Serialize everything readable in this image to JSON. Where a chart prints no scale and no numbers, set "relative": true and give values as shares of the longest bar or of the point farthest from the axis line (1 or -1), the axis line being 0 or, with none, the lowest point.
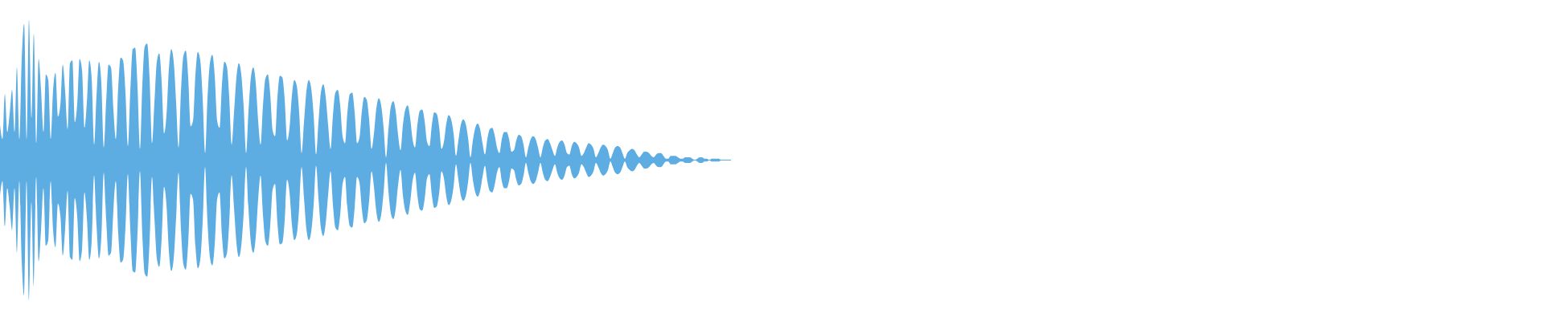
{
  "chart_data": {
    "type": "area",
    "relative": true,
    "categories": [
      null,
      null,
      null,
      null,
      null,
      null,
      null,
      null,
      null,
      null,
      null,
      null,
      null,
      null,
      null,
      null,
      null,
      null,
      null,
      null,
      null,
      null,
      null,
      null,
      null,
      null,
      null,
      null,
      null,
      null,
      null,
      null,
      null,
      null,
      null,
      null,
      null,
      null,
      null,
      null,
      null,
      null,
      null,
      null,
      null,
      null,
      null,
      null,
      null,
      null,
      null,
      null,
      null,
      null,
      null,
      null,
      null,
      null,
      null,
      null,
      null,
      null,
      null,
      null,
      null,
      null,
      null,
      null,
      null,
      null,
      null,
      null,
      null,
      null,
      null,
      null,
      null,
      null,
      null,
      null,
      null,
      null,
      null,
      null,
      null,
      null,
      null,
      null,
      null,
      null,
      null,
      null,
      null,
      null,
      null,
      null,
      null,
      null,
      null,
      null,
      null,
      null,
      null,
      null,
      null,
      null,
      null,
      null,
      null,
      null,
      null,
      null,
      null,
      null,
      null,
      null,
      null,
      null,
      null,
      null,
      null,
      null,
      null,
      null,
      null,
      null,
      null,
      null,
      null,
      null,
      null,
      null,
      null,
      null,
      null,
      null,
      null,
      null,
      null,
      null,
      null,
      null,
      null,
      null,
      null,
      null,
      null,
      null,
      null,
      null,
      null,
      null,
      null,
      null,
      null,
      null,
      null,
      null,
      null,
      null,
      null,
      null,
      null,
      null,
      null,
      null,
      null,
      null,
      null,
      null,
      null,
      null,
      null,
      null,
      null,
      null,
      null,
      null,
      null,
      null,
      null,
      null,
      null,
      null,
      null,
      null,
      null,
      null,
      null,
      null,
      null,
      null,
      null,
      null,
      null,
      null,
      null,
      null,
      null,
      null,
      null,
      null,
      null,
      null,
      null,
      null,
      null,
      null,
      null,
      null,
      null,
      null,
      null,
      null,
      null,
      null,
      null,
      null,
      null,
      null,
      null,
      null,
      null,
      null,
      null,
      null,
      null,
      null,
      null,
      null,
      null,
      null,
      null,
      null,
      null,
      null,
      null,
      null,
      null,
      null,
      null,
      null,
      null,
      null,
      null,
      null,
      null,
      null,
      null,
      null,
      null,
      null,
      null,
      null,
      null,
      null,
      null,
      null,
      null,
      null,
      null,
      null,
      null,
      null,
      null,
      null,
      null,
      null,
      null,
      null,
      null,
      null,
      null,
      null,
      null,
      null,
      null,
      null,
      null,
      null,
      null,
      null,
      null,
      null,
      null,
      null,
      null,
      null,
      null,
      null,
      null,
      null,
      null,
      null,
      null,
      null,
      null,
      null,
      null,
      null,
      null,
      null,
      null,
      null
    ],
    "ref_lines": [
      {
        "axis": "y",
        "value": 0,
        "color": "#5dade2"
      }
    ],
    "series": [
      {
        "color": "#5dade2",
        "values": [
          0.25,
          0.15,
          0.47,
          0.2,
          0.33,
          0.5,
          0.2,
          0.66,
          0.15,
          0.72,
          0.97,
          0.15,
          1,
          0.3,
          0.9,
          0.12,
          0.72,
          0.5,
          0.2,
          0.61,
          0.57,
          0.15,
          0.5,
          0.62,
          0.31,
          0.39,
          0.68,
          0.49,
          0.22,
          0.69,
          0.71,
          0.27,
          0.4,
          0.72,
          0.64,
          0.23,
          0.41,
          0.71,
          0.58,
          0.11,
          0.46,
          0.7,
          0.55,
          0.09,
          0.42,
          0.68,
          0.66,
          0.36,
          0.15,
          0.52,
          0.73,
          0.71,
          0.48,
          0.1,
          0.49,
          0.79,
          0.8,
          0.52,
          0.08,
          0.54,
          0.81,
          0.83,
          0.58,
          0.12,
          0.41,
          0.7,
          0.76,
          0.56,
          0.19,
          0.32,
          0.65,
          0.79,
          0.7,
          0.41,
          0.09,
          0.49,
          0.74,
          0.78,
          0.59,
          0.24,
          0.28,
          0.61,
          0.77,
          0.71,
          0.44,
          0.05,
          0.44,
          0.69,
          0.75,
          0.6,
          0.28,
          0.23,
          0.54,
          0.7,
          0.67,
          0.45,
          0.11,
          0.34,
          0.59,
          0.69,
          0.61,
          0.38,
          0.05,
          0.35,
          0.59,
          0.66,
          0.55,
          0.28,
          0.11,
          0.39,
          0.58,
          0.61,
          0.47,
          0.21,
          0.17,
          0.45,
          0.6,
          0.59,
          0.43,
          0.14,
          0.23,
          0.46,
          0.57,
          0.53,
          0.34,
          0.05,
          0.27,
          0.49,
          0.57,
          0.51,
          0.32,
          0.04,
          0.27,
          0.48,
          0.54,
          0.45,
          0.25,
          0.08,
          0.32,
          0.48,
          0.5,
          0.39,
          0.17,
          0.12,
          0.34,
          0.47,
          0.48,
          0.34,
          0.12,
          0.16,
          0.35,
          0.45,
          0.43,
          0.29,
          0.08,
          0.19,
          0.37,
          0.44,
          0.39,
          0.23,
          0.02,
          0.22,
          0.38,
          0.42,
          0.35,
          0.18,
          0.07,
          0.25,
          0.36,
          0.39,
          0.3,
          0.15,
          0.09,
          0.25,
          0.35,
          0.36,
          0.28,
          0.13,
          0.1,
          0.25,
          0.34,
          0.33,
          0.24,
          0.08,
          0.13,
          0.26,
          0.32,
          0.29,
          0.19,
          0.03,
          0.14,
          0.25,
          0.29,
          0.26,
          0.16,
          0.02,
          0.14,
          0.23,
          0.26,
          0.22,
          0.12,
          0.04,
          0.15,
          0.22,
          0.23,
          0.18,
          0.09,
          0.05,
          0.15,
          0.2,
          0.2,
          0.15,
          0.06,
          0.07,
          0.14,
          0.18,
          0.17,
          0.11,
          0.02,
          0.09,
          0.15,
          0.17,
          0.15,
          0.09,
          0.02,
          0.09,
          0.14,
          0.15,
          0.12,
          0.07,
          0.03,
          0.09,
          0.13,
          0.14,
          0.11,
          0.05,
          0.04,
          0.1,
          0.13,
          0.12,
          0.09,
          0.03,
          0.05,
          0.09,
          0.12,
          0.11,
          0.08,
          0.02,
          0.05,
          0.09,
          0.11,
          0.1,
          0.07,
          0.01,
          0.05,
          0.09,
          0.1,
          0.09,
          0.05,
          0.01,
          0.05,
          0.07,
          0.08,
          0.07,
          0.04,
          0.02,
          0.04,
          0.06,
          0.06,
          0.05,
          0.03,
          0.02,
          0.04,
          0.05,
          0.05,
          0.03,
          0.01,
          0.01,
          0.03,
          0.03,
          0.03,
          0.02,
          0.01,
          0.01,
          0.02,
          0.02,
          0.02,
          0.01,
          0,
          0.01,
          0.02,
          0.02,
          0.01,
          0.01,
          0,
          0.01,
          0.01,
          0.01,
          0.01,
          0,
          0,
          0,
          0,
          0
        ]
      },
      {
        "color": "#5dade2",
        "values": [
          -0.25,
          -0.15,
          -0.47,
          -0.2,
          -0.33,
          -0.5,
          -0.2,
          -0.66,
          -0.15,
          -0.72,
          -0.97,
          -0.15,
          -1,
          -0.3,
          -0.9,
          -0.12,
          -0.72,
          -0.5,
          -0.2,
          -0.61,
          -0.57,
          -0.15,
          -0.5,
          -0.62,
          -0.31,
          -0.39,
          -0.68,
          -0.49,
          -0.22,
          -0.69,
          -0.71,
          -0.27,
          -0.4,
          -0.72,
          -0.64,
          -0.23,
          -0.41,
          -0.71,
          -0.58,
          -0.11,
          -0.46,
          -0.7,
          -0.55,
          -0.09,
          -0.42,
          -0.68,
          -0.66,
          -0.36,
          -0.15,
          -0.52,
          -0.73,
          -0.71,
          -0.48,
          -0.1,
          -0.49,
          -0.79,
          -0.8,
          -0.52,
          -0.08,
          -0.54,
          -0.81,
          -0.83,
          -0.58,
          -0.12,
          -0.41,
          -0.7,
          -0.76,
          -0.56,
          -0.19,
          -0.32,
          -0.65,
          -0.79,
          -0.7,
          -0.41,
          -0.09,
          -0.49,
          -0.74,
          -0.78,
          -0.59,
          -0.24,
          -0.28,
          -0.61,
          -0.77,
          -0.71,
          -0.44,
          -0.05,
          -0.44,
          -0.69,
          -0.75,
          -0.6,
          -0.28,
          -0.23,
          -0.54,
          -0.7,
          -0.67,
          -0.45,
          -0.11,
          -0.34,
          -0.59,
          -0.69,
          -0.61,
          -0.38,
          -0.05,
          -0.35,
          -0.59,
          -0.66,
          -0.55,
          -0.28,
          -0.11,
          -0.39,
          -0.58,
          -0.61,
          -0.47,
          -0.21,
          -0.17,
          -0.45,
          -0.6,
          -0.59,
          -0.43,
          -0.14,
          -0.23,
          -0.46,
          -0.57,
          -0.53,
          -0.34,
          -0.05,
          -0.27,
          -0.49,
          -0.57,
          -0.51,
          -0.32,
          -0.04,
          -0.27,
          -0.48,
          -0.54,
          -0.45,
          -0.25,
          -0.08,
          -0.32,
          -0.48,
          -0.5,
          -0.39,
          -0.17,
          -0.12,
          -0.34,
          -0.47,
          -0.48,
          -0.34,
          -0.12,
          -0.16,
          -0.35,
          -0.45,
          -0.43,
          -0.29,
          -0.08,
          -0.19,
          -0.37,
          -0.44,
          -0.39,
          -0.23,
          -0.02,
          -0.22,
          -0.38,
          -0.42,
          -0.35,
          -0.18,
          -0.07,
          -0.25,
          -0.36,
          -0.39,
          -0.3,
          -0.15,
          -0.09,
          -0.25,
          -0.35,
          -0.36,
          -0.28,
          -0.13,
          -0.1,
          -0.25,
          -0.34,
          -0.33,
          -0.24,
          -0.08,
          -0.13,
          -0.26,
          -0.32,
          -0.29,
          -0.19,
          -0.03,
          -0.14,
          -0.25,
          -0.29,
          -0.26,
          -0.16,
          -0.02,
          -0.14,
          -0.23,
          -0.26,
          -0.22,
          -0.12,
          -0.04,
          -0.15,
          -0.22,
          -0.23,
          -0.18,
          -0.09,
          -0.05,
          -0.15,
          -0.2,
          -0.2,
          -0.15,
          -0.06,
          -0.07,
          -0.14,
          -0.18,
          -0.17,
          -0.11,
          -0.02,
          -0.09,
          -0.15,
          -0.17,
          -0.15,
          -0.09,
          -0.02,
          -0.09,
          -0.14,
          -0.15,
          -0.12,
          -0.07,
          -0.03,
          -0.09,
          -0.13,
          -0.14,
          -0.11,
          -0.05,
          -0.04,
          -0.1,
          -0.13,
          -0.12,
          -0.09,
          -0.03,
          -0.05,
          -0.09,
          -0.12,
          -0.11,
          -0.08,
          -0.02,
          -0.05,
          -0.09,
          -0.11,
          -0.1,
          -0.07,
          -0.01,
          -0.05,
          -0.09,
          -0.1,
          -0.09,
          -0.05,
          -0.01,
          -0.05,
          -0.07,
          -0.08,
          -0.07,
          -0.04,
          -0.02,
          -0.04,
          -0.06,
          -0.06,
          -0.05,
          -0.03,
          -0.02,
          -0.04,
          -0.05,
          -0.05,
          -0.03,
          -0.01,
          -0.01,
          -0.03,
          -0.03,
          -0.03,
          -0.02,
          -0.01,
          -0.01,
          -0.02,
          -0.02,
          -0.02,
          -0.01,
          0,
          -0.01,
          -0.02,
          -0.02,
          -0.01,
          -0.01,
          0,
          -0.01,
          -0.01,
          -0.01,
          -0.01,
          0,
          0,
          0,
          0,
          0
        ]
      }
    ]
  }
}
